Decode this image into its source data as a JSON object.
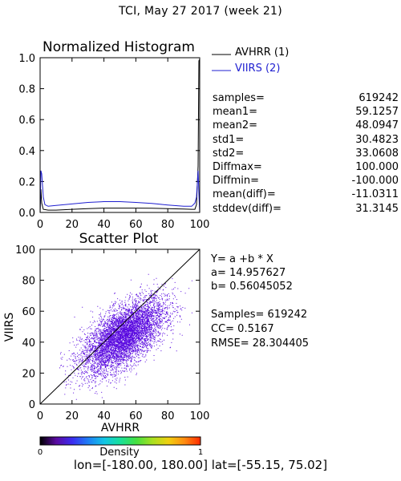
{
  "page": {
    "title": "TCI,  May 27 2017 (week 21)",
    "footer": "lon=[-180.00, 180.00] lat=[-55.15, 75.02]"
  },
  "histogram_legend": {
    "avhrr": "AVHRR (1)",
    "viirs": "VIIRS (2)",
    "avhrr_color": "#000000",
    "viirs_color": "#1f1fd0"
  },
  "stats": [
    {
      "label": "samples=",
      "value": "619242"
    },
    {
      "label": "mean1=",
      "value": "59.1257"
    },
    {
      "label": "mean2=",
      "value": "48.0947"
    },
    {
      "label": "std1=",
      "value": "30.4823"
    },
    {
      "label": "std2=",
      "value": "33.0608"
    },
    {
      "label": "Diffmax=",
      "value": "100.000"
    },
    {
      "label": "Diffmin=",
      "value": "-100.000"
    },
    {
      "label": "mean(diff)=",
      "value": "-11.0311"
    },
    {
      "label": "stddev(diff)=",
      "value": "31.3145"
    }
  ],
  "regression": {
    "equation": "Y= a +b * X",
    "a": "a= 14.957627",
    "b": "b= 0.56045052",
    "samples": "Samples= 619242",
    "cc": "CC=  0.5167",
    "rmse": "RMSE= 28.304405"
  },
  "colorbar": {
    "label": "Density",
    "min_label": "0",
    "max_label": "1",
    "colors": [
      "#000000",
      "#5a0aa0",
      "#3b2cf0",
      "#1e7ef5",
      "#12c6e6",
      "#18e09a",
      "#45e040",
      "#a8e020",
      "#f0d010",
      "#ff8c10",
      "#ff2a00"
    ]
  },
  "chart_data": [
    {
      "type": "line",
      "title": "Normalized Histogram",
      "xlim": [
        0,
        100
      ],
      "ylim": [
        0,
        1.0
      ],
      "xticks": [
        "0",
        "20",
        "40",
        "60",
        "80",
        "100"
      ],
      "yticks": [
        "0.0",
        "0.2",
        "0.4",
        "0.6",
        "0.8",
        "1.0"
      ],
      "series": [
        {
          "name": "AVHRR (1)",
          "color": "#000000",
          "x": [
            0,
            0.5,
            1,
            2,
            5,
            10,
            20,
            30,
            40,
            50,
            60,
            70,
            80,
            90,
            95,
            97,
            98,
            99,
            99.5,
            100
          ],
          "y": [
            0.0,
            0.15,
            0.06,
            0.02,
            0.015,
            0.015,
            0.02,
            0.025,
            0.028,
            0.028,
            0.028,
            0.027,
            0.025,
            0.022,
            0.02,
            0.02,
            0.05,
            0.3,
            0.98,
            0.99
          ]
        },
        {
          "name": "VIIRS (2)",
          "color": "#1f1fd0",
          "x": [
            0,
            0.5,
            1,
            2,
            3,
            5,
            10,
            20,
            30,
            40,
            50,
            60,
            70,
            80,
            90,
            95,
            97,
            98,
            99,
            99.5,
            100
          ],
          "y": [
            0.0,
            0.27,
            0.25,
            0.1,
            0.05,
            0.04,
            0.045,
            0.055,
            0.065,
            0.07,
            0.07,
            0.065,
            0.058,
            0.048,
            0.04,
            0.04,
            0.06,
            0.1,
            0.27,
            0.12,
            0.0
          ]
        }
      ]
    },
    {
      "type": "scatter",
      "title": "Scatter Plot",
      "xlabel": "AVHRR",
      "ylabel": "VIIRS",
      "xlim": [
        0,
        100
      ],
      "ylim": [
        0,
        100
      ],
      "xticks": [
        "0",
        "20",
        "40",
        "60",
        "80",
        "100"
      ],
      "yticks": [
        "0",
        "20",
        "40",
        "60",
        "80",
        "100"
      ],
      "one_to_one_line": true,
      "regression": {
        "a": 14.957627,
        "b": 0.56045052
      },
      "point_cloud": {
        "count": 6000,
        "x_mean": 52,
        "x_std": 13,
        "y_mean": 44,
        "y_std": 12,
        "corr": 0.62,
        "color": "#5a0ae0"
      }
    }
  ]
}
